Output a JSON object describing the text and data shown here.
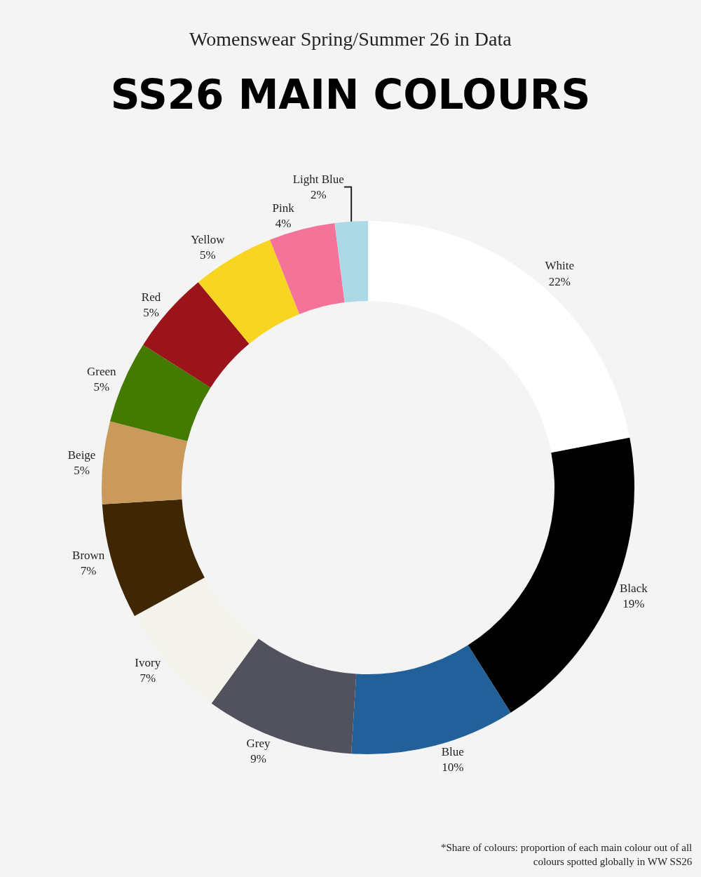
{
  "chart_data": {
    "type": "donut",
    "title": "SS26 MAIN COLOURS",
    "subtitle": "Womenswear Spring/Summer 26 in Data",
    "categories": [
      "White",
      "Black",
      "Blue",
      "Grey",
      "Ivory",
      "Brown",
      "Beige",
      "Green",
      "Red",
      "Yellow",
      "Pink",
      "Light Blue"
    ],
    "values": [
      22,
      19,
      10,
      9,
      7,
      7,
      5,
      5,
      5,
      5,
      4,
      2
    ],
    "value_labels": [
      "22%",
      "19%",
      "10%",
      "9%",
      "7%",
      "7%",
      "5%",
      "5%",
      "5%",
      "5%",
      "4%",
      "2%"
    ],
    "colors": [
      "#ffffff",
      "#000000",
      "#22609a",
      "#52525e",
      "#f4f4ec",
      "#3f2703",
      "#c99a5c",
      "#457a00",
      "#9b141b",
      "#f8d523",
      "#f47399",
      "#add8e6"
    ],
    "annotations": [
      "*Share of colours: proportion of each main colour out of all\ncolours spotted globally in WW SS26"
    ],
    "legend": false
  }
}
